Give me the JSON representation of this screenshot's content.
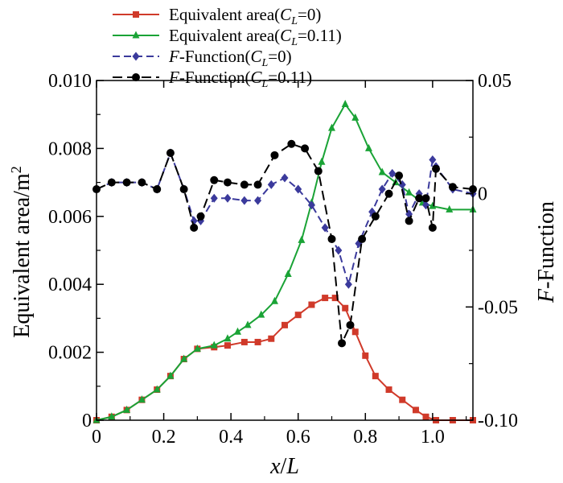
{
  "chart_data": {
    "type": "line",
    "xlabel_italic": "x",
    "xlabel_sep": "/",
    "xlabel_italic2": "L",
    "ylabel_left": "Equivalent area/m",
    "ylabel_left_sup": "2",
    "ylabel_right_italic": "F",
    "ylabel_right_rest": "-Function",
    "xlim": [
      0,
      1.12
    ],
    "ylim_left": [
      0,
      0.01
    ],
    "ylim_right": [
      -0.1,
      0.05
    ],
    "x_ticks": [
      {
        "v": 0,
        "label": "0"
      },
      {
        "v": 0.2,
        "label": "0.2"
      },
      {
        "v": 0.4,
        "label": "0.4"
      },
      {
        "v": 0.6,
        "label": "0.6"
      },
      {
        "v": 0.8,
        "label": "0.8"
      },
      {
        "v": 1.0,
        "label": "1.0"
      }
    ],
    "y_left_ticks": [
      {
        "v": 0,
        "label": "0"
      },
      {
        "v": 0.002,
        "label": "0.002"
      },
      {
        "v": 0.004,
        "label": "0.004"
      },
      {
        "v": 0.006,
        "label": "0.006"
      },
      {
        "v": 0.008,
        "label": "0.008"
      },
      {
        "v": 0.01,
        "label": "0.010"
      }
    ],
    "y_right_ticks": [
      {
        "v": -0.1,
        "label": "-0.10"
      },
      {
        "v": -0.05,
        "label": "-0.05"
      },
      {
        "v": 0,
        "label": "0"
      },
      {
        "v": 0.05,
        "label": "0.05"
      }
    ],
    "series": [
      {
        "name": "Equivalent area(CL=0)",
        "legend_prefix": "Equivalent area(",
        "legend_italic": "C",
        "legend_sub": "L",
        "legend_suffix": "=0)",
        "axis": "left",
        "color": "#d03a2a",
        "dash": "",
        "marker": "square",
        "x": [
          0,
          0.045,
          0.09,
          0.135,
          0.18,
          0.22,
          0.26,
          0.3,
          0.35,
          0.39,
          0.44,
          0.48,
          0.52,
          0.56,
          0.6,
          0.64,
          0.68,
          0.71,
          0.74,
          0.77,
          0.8,
          0.83,
          0.87,
          0.91,
          0.95,
          0.98,
          1.01,
          1.06,
          1.12
        ],
        "y": [
          0,
          0.0001,
          0.0003,
          0.0006,
          0.0009,
          0.0013,
          0.0018,
          0.0021,
          0.00215,
          0.0022,
          0.0023,
          0.0023,
          0.0024,
          0.0028,
          0.0031,
          0.0034,
          0.0036,
          0.0036,
          0.0033,
          0.0026,
          0.0019,
          0.0013,
          0.0009,
          0.0006,
          0.0003,
          0.0001,
          0,
          0,
          0
        ]
      },
      {
        "name": "Equivalent area(CL=0.11)",
        "legend_prefix": "Equivalent area(",
        "legend_italic": "C",
        "legend_sub": "L",
        "legend_suffix": "=0.11)",
        "axis": "left",
        "color": "#1aa336",
        "dash": "",
        "marker": "triangle",
        "x": [
          0,
          0.045,
          0.09,
          0.135,
          0.18,
          0.22,
          0.26,
          0.3,
          0.35,
          0.39,
          0.42,
          0.45,
          0.49,
          0.53,
          0.57,
          0.61,
          0.64,
          0.67,
          0.7,
          0.74,
          0.77,
          0.81,
          0.85,
          0.89,
          0.93,
          0.97,
          1.0,
          1.05,
          1.12
        ],
        "y": [
          0,
          0.0001,
          0.0003,
          0.0006,
          0.0009,
          0.0013,
          0.0018,
          0.0021,
          0.0022,
          0.0024,
          0.0026,
          0.0028,
          0.0031,
          0.0035,
          0.0043,
          0.0053,
          0.0064,
          0.0076,
          0.0086,
          0.0093,
          0.0089,
          0.008,
          0.0073,
          0.007,
          0.0067,
          0.0064,
          0.0063,
          0.0062,
          0.0062
        ]
      },
      {
        "name": "F-Function(CL=0)",
        "legend_prefix": "",
        "legend_italic": "F",
        "legend_mid": "-Function(",
        "legend_italic2": "C",
        "legend_sub": "L",
        "legend_suffix": "=0)",
        "axis": "right",
        "color": "#3b3a9c",
        "dash": "9,5",
        "marker": "diamond",
        "x": [
          0,
          0.045,
          0.09,
          0.135,
          0.18,
          0.22,
          0.26,
          0.29,
          0.31,
          0.35,
          0.39,
          0.44,
          0.48,
          0.52,
          0.56,
          0.6,
          0.64,
          0.68,
          0.72,
          0.75,
          0.78,
          0.82,
          0.85,
          0.88,
          0.91,
          0.93,
          0.96,
          0.98,
          1.0,
          1.01,
          1.06,
          1.12
        ],
        "y": [
          0.002,
          0.005,
          0.005,
          0.005,
          0.002,
          0.018,
          0.002,
          -0.012,
          -0.012,
          -0.002,
          -0.002,
          -0.003,
          -0.003,
          0.004,
          0.007,
          0.002,
          -0.005,
          -0.015,
          -0.025,
          -0.04,
          -0.022,
          -0.008,
          0.002,
          0.009,
          0.004,
          -0.009,
          0.0,
          -0.005,
          0.015,
          0.012,
          0.002,
          0.0
        ]
      },
      {
        "name": "F-Function(CL=0.11)",
        "legend_prefix": "",
        "legend_italic": "F",
        "legend_mid": "-Function(",
        "legend_italic2": "C",
        "legend_sub": "L",
        "legend_suffix": "=0.11)",
        "axis": "right",
        "color": "#000000",
        "dash": "12,6",
        "marker": "circle",
        "x": [
          0,
          0.045,
          0.09,
          0.135,
          0.18,
          0.22,
          0.26,
          0.29,
          0.31,
          0.35,
          0.39,
          0.44,
          0.48,
          0.53,
          0.58,
          0.62,
          0.66,
          0.7,
          0.73,
          0.755,
          0.79,
          0.83,
          0.87,
          0.9,
          0.93,
          0.96,
          0.98,
          1.0,
          1.01,
          1.06,
          1.12
        ],
        "y": [
          0.002,
          0.005,
          0.005,
          0.005,
          0.002,
          0.018,
          0.002,
          -0.015,
          -0.01,
          0.006,
          0.005,
          0.004,
          0.004,
          0.017,
          0.022,
          0.02,
          0.01,
          -0.02,
          -0.066,
          -0.058,
          -0.02,
          -0.01,
          0.0,
          0.008,
          -0.012,
          -0.002,
          -0.002,
          -0.015,
          0.011,
          0.003,
          0.002
        ]
      }
    ]
  }
}
